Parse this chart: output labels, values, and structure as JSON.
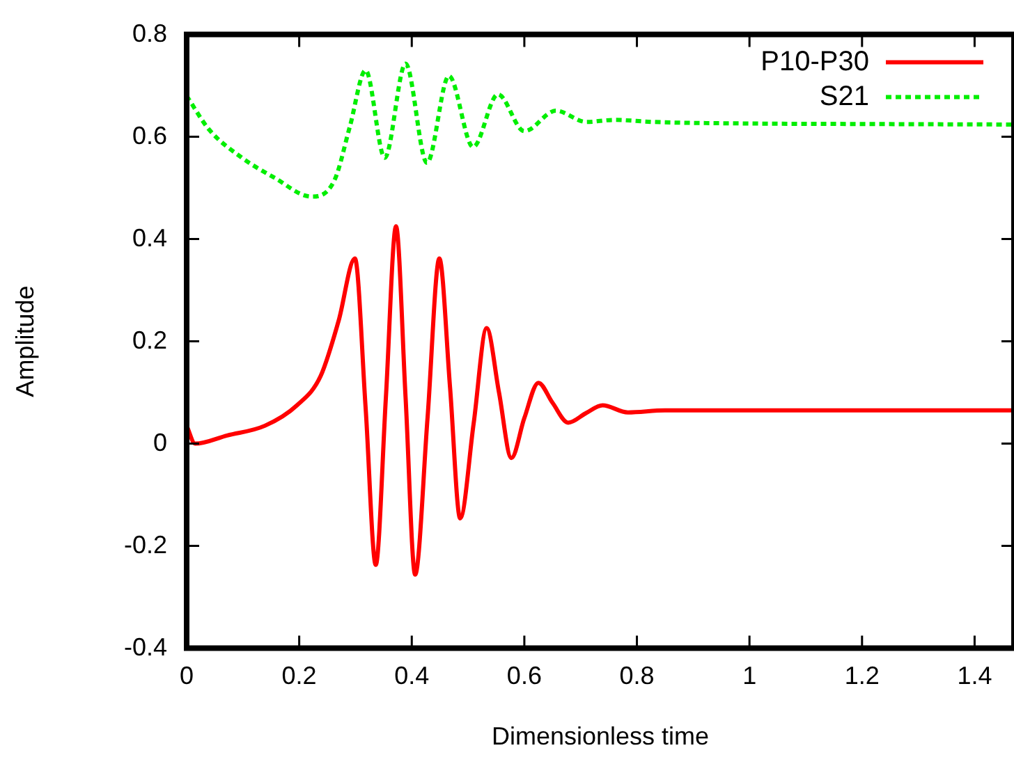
{
  "chart_data": {
    "type": "line",
    "xlabel": "Dimensionless time",
    "ylabel": "Amplitude",
    "xlim": [
      0,
      1.47
    ],
    "xticks": [
      0,
      0.2,
      0.4,
      0.6,
      0.8,
      1,
      1.2,
      1.4
    ],
    "ylim": [
      -0.4,
      0.8
    ],
    "yticks": [
      -0.4,
      -0.2,
      0,
      0.2,
      0.4,
      0.6,
      0.8
    ],
    "grid": false,
    "legend": "top right",
    "marker": "none",
    "series": [
      {
        "name": "P10-P30",
        "color": "#ff0000",
        "line_style": "solid",
        "x": [
          0,
          0.015,
          0.072,
          0.139,
          0.196,
          0.238,
          0.27,
          0.299,
          0.318,
          0.336,
          0.354,
          0.372,
          0.389,
          0.406,
          0.428,
          0.449,
          0.468,
          0.486,
          0.51,
          0.533,
          0.555,
          0.577,
          0.6,
          0.625,
          0.65,
          0.678,
          0.71,
          0.739,
          0.784,
          0.85,
          1,
          1.2,
          1.47
        ],
        "values": [
          0.035,
          0,
          0.016,
          0.035,
          0.075,
          0.132,
          0.24,
          0.362,
          0.07,
          -0.237,
          0.09,
          0.425,
          0.09,
          -0.256,
          0.05,
          0.362,
          0.11,
          -0.146,
          0.04,
          0.226,
          0.1,
          -0.028,
          0.05,
          0.119,
          0.08,
          0.041,
          0.06,
          0.075,
          0.061,
          0.065,
          0.065,
          0.065,
          0.065
        ]
      },
      {
        "name": "S21",
        "color": "#00ee00",
        "line_style": "dotted",
        "x": [
          0,
          0.04,
          0.097,
          0.156,
          0.222,
          0.263,
          0.29,
          0.318,
          0.352,
          0.389,
          0.427,
          0.466,
          0.509,
          0.553,
          0.6,
          0.656,
          0.71,
          0.759,
          0.829,
          1,
          1.2,
          1.47
        ],
        "values": [
          0.68,
          0.614,
          0.56,
          0.52,
          0.483,
          0.516,
          0.62,
          0.73,
          0.559,
          0.743,
          0.549,
          0.719,
          0.58,
          0.683,
          0.611,
          0.651,
          0.629,
          0.633,
          0.629,
          0.626,
          0.625,
          0.624
        ]
      }
    ]
  }
}
